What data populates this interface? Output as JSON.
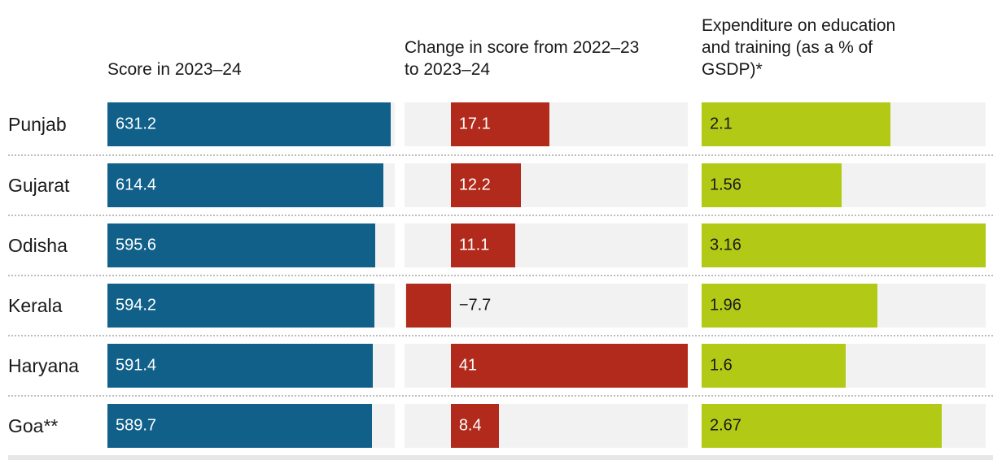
{
  "chart_data": {
    "type": "bar",
    "orientation": "horizontal",
    "grid": false,
    "legend": false,
    "track_color": "#f2f2f2",
    "categories": [
      "Punjab",
      "Gujarat",
      "Odisha",
      "Kerala",
      "Haryana",
      "Goa**"
    ],
    "series": [
      {
        "name": "Score in 2023–24",
        "values": [
          631.2,
          614.4,
          595.6,
          594.2,
          591.4,
          589.7
        ],
        "labels": [
          "631.2",
          "614.4",
          "595.6",
          "594.2",
          "591.4",
          "589.7"
        ],
        "axis_min": 0,
        "axis_max": 640,
        "bar_color": "#10608a",
        "label_color": "#ffffff"
      },
      {
        "name": "Change in score from 2022–23 to 2023–24",
        "values": [
          17.1,
          12.2,
          11.1,
          -7.7,
          41,
          8.4
        ],
        "labels": [
          "17.1",
          "12.2",
          "11.1",
          "−7.7",
          "41",
          "8.4"
        ],
        "axis_min": -8,
        "axis_max": 41,
        "bar_color": "#b12a1b",
        "label_color": "#ffffff",
        "negative_label_color": "#1a1a1a"
      },
      {
        "name": "Expenditure on education and training (as a % of GSDP)*",
        "values": [
          2.1,
          1.56,
          3.16,
          1.96,
          1.6,
          2.67
        ],
        "labels": [
          "2.1",
          "1.56",
          "3.16",
          "1.96",
          "1.6",
          "2.67"
        ],
        "axis_min": 0,
        "axis_max": 3.16,
        "bar_color": "#b2ca15",
        "label_color": "#1a1a1a"
      }
    ]
  }
}
